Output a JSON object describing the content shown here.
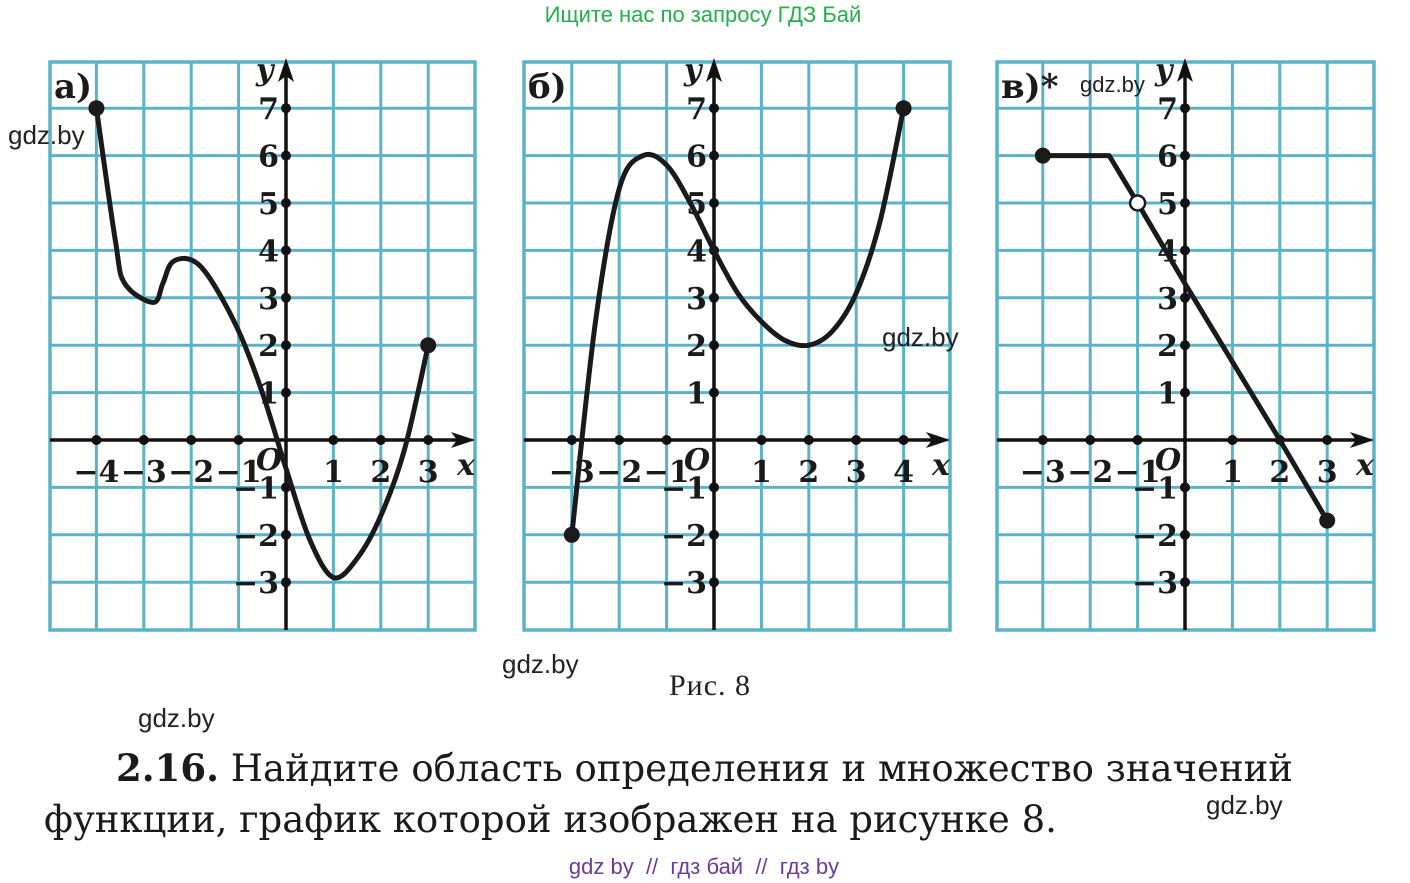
{
  "header_link": "Ищите нас по запросу ГДЗ Бай",
  "watermark": "gdz.by",
  "caption": "Рис. 8",
  "task": {
    "number": "2.16.",
    "line1": "Найдите область определения и множество значений",
    "line2": "функции, график которой изображен на рисунке 8."
  },
  "footer_links": "gdz by  //  гдз бай  //  гдз by",
  "chart_data": [
    {
      "panel": "а)",
      "type": "line",
      "xlabel": "x",
      "ylabel": "y",
      "origin_label": "O",
      "xticks": [
        -4,
        -3,
        -2,
        -1,
        1,
        2,
        3
      ],
      "yticks": [
        -3,
        -2,
        -1,
        1,
        2,
        3,
        4,
        5,
        6,
        7
      ],
      "xlim": [
        -5,
        4
      ],
      "ylim": [
        -4,
        8
      ],
      "grid": true,
      "series": [
        {
          "points": [
            [
              -4,
              7
            ],
            [
              -3.6,
              4.2
            ],
            [
              -3.4,
              3.3
            ],
            [
              -2.8,
              2.9
            ],
            [
              -2.6,
              3.3
            ],
            [
              -2.4,
              3.75
            ],
            [
              -2,
              3.8
            ],
            [
              -1.6,
              3.4
            ],
            [
              -1,
              2.3
            ],
            [
              -0.5,
              1
            ],
            [
              0,
              -0.6
            ],
            [
              0.5,
              -2.1
            ],
            [
              1,
              -2.9
            ],
            [
              1.5,
              -2.5
            ],
            [
              2,
              -1.6
            ],
            [
              2.5,
              -0.2
            ],
            [
              3,
              2
            ]
          ],
          "endpoints": [
            {
              "x": -4,
              "y": 7,
              "filled": true
            },
            {
              "x": 3,
              "y": 2,
              "filled": true
            }
          ]
        }
      ]
    },
    {
      "panel": "б)",
      "type": "line",
      "xlabel": "x",
      "ylabel": "y",
      "origin_label": "O",
      "xticks": [
        -3,
        -2,
        -1,
        1,
        2,
        3,
        4
      ],
      "yticks": [
        -3,
        -2,
        -1,
        1,
        2,
        3,
        4,
        5,
        6,
        7
      ],
      "xlim": [
        -4,
        5
      ],
      "ylim": [
        -4,
        8
      ],
      "grid": true,
      "series": [
        {
          "points": [
            [
              -3,
              -2
            ],
            [
              -2.5,
              2.5
            ],
            [
              -2,
              5.3
            ],
            [
              -1.5,
              6
            ],
            [
              -1,
              5.8
            ],
            [
              -0.5,
              5
            ],
            [
              0,
              4
            ],
            [
              0.5,
              3.1
            ],
            [
              1,
              2.5
            ],
            [
              1.5,
              2.1
            ],
            [
              2,
              2
            ],
            [
              2.5,
              2.3
            ],
            [
              3,
              3.1
            ],
            [
              3.5,
              4.6
            ],
            [
              4,
              7
            ]
          ],
          "endpoints": [
            {
              "x": -3,
              "y": -2,
              "filled": true
            },
            {
              "x": 4,
              "y": 7,
              "filled": true
            }
          ]
        }
      ]
    },
    {
      "panel": "в)*",
      "type": "line",
      "xlabel": "x",
      "ylabel": "y",
      "origin_label": "O",
      "xticks": [
        -3,
        -2,
        -1,
        1,
        2,
        3
      ],
      "yticks": [
        -3,
        -2,
        -1,
        1,
        2,
        3,
        4,
        5,
        6,
        7
      ],
      "xlim": [
        -4,
        4
      ],
      "ylim": [
        -4,
        8
      ],
      "grid": true,
      "series": [
        {
          "points": [
            [
              -3,
              6
            ],
            [
              -1.6,
              6
            ],
            [
              -1,
              5
            ],
            [
              0,
              3.3
            ],
            [
              2,
              0
            ],
            [
              3,
              -1.7
            ]
          ],
          "endpoints": [
            {
              "x": -3,
              "y": 6,
              "filled": true
            },
            {
              "x": -1,
              "y": 5,
              "filled": false
            },
            {
              "x": 3,
              "y": -1.7,
              "filled": true
            }
          ]
        }
      ]
    }
  ]
}
